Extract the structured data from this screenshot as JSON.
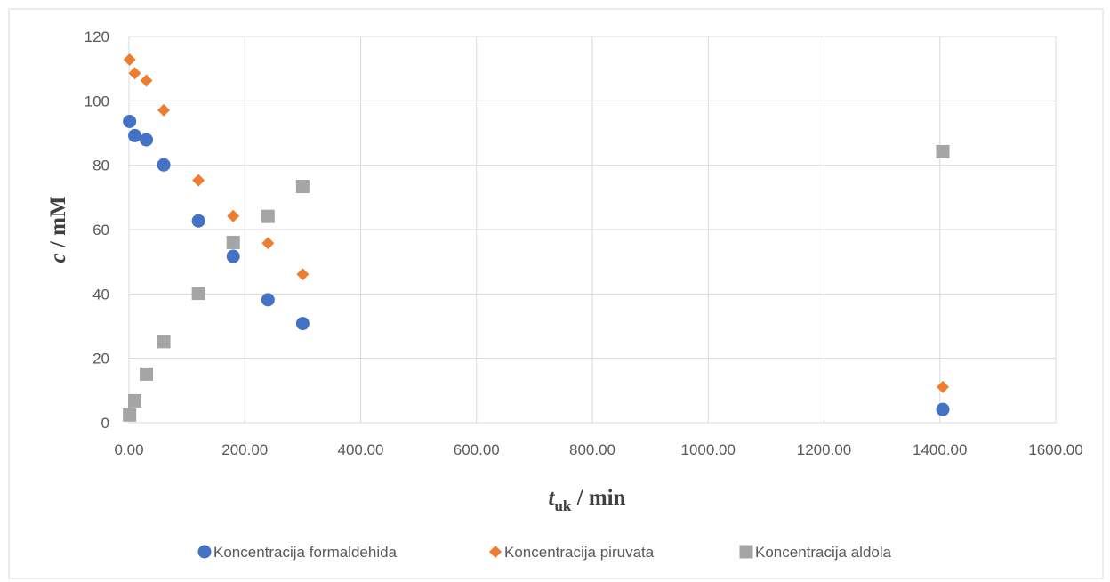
{
  "chart_data": {
    "type": "scatter",
    "xlabel": {
      "main": "t",
      "sub": "uk",
      "rest": " / min"
    },
    "ylabel": {
      "main": "c",
      "rest": " / mM"
    },
    "xlim": [
      0,
      1600
    ],
    "ylim": [
      0,
      120
    ],
    "x_ticks": [
      0,
      200,
      400,
      600,
      800,
      1000,
      1200,
      1400,
      1600
    ],
    "x_tick_labels": [
      "0.00",
      "200.00",
      "400.00",
      "600.00",
      "800.00",
      "1000.00",
      "1200.00",
      "1400.00",
      "1600.00"
    ],
    "y_ticks": [
      0,
      20,
      40,
      60,
      80,
      100,
      120
    ],
    "y_tick_labels": [
      "0",
      "20",
      "40",
      "60",
      "80",
      "100",
      "120"
    ],
    "grid": true,
    "legend_position": "bottom",
    "series": [
      {
        "name": "Koncentracija formaldehida",
        "marker": "circle",
        "color": "#4472c4",
        "points": [
          [
            1,
            93.6
          ],
          [
            10,
            89.2
          ],
          [
            30,
            87.9
          ],
          [
            60,
            80.1
          ],
          [
            120,
            62.7
          ],
          [
            180,
            51.7
          ],
          [
            240,
            38.2
          ],
          [
            300,
            30.8
          ],
          [
            1405,
            4.1
          ]
        ]
      },
      {
        "name": "Koncentracija piruvata",
        "marker": "diamond",
        "color": "#ed7d31",
        "points": [
          [
            1,
            112.8
          ],
          [
            10,
            108.6
          ],
          [
            30,
            106.3
          ],
          [
            60,
            97.1
          ],
          [
            120,
            75.3
          ],
          [
            180,
            64.2
          ],
          [
            240,
            55.8
          ],
          [
            300,
            46.1
          ],
          [
            1405,
            11.1
          ]
        ]
      },
      {
        "name": "Koncentracija aldola",
        "marker": "square",
        "color": "#a5a5a5",
        "points": [
          [
            1,
            2.4
          ],
          [
            10,
            6.8
          ],
          [
            30,
            15.1
          ],
          [
            60,
            25.2
          ],
          [
            120,
            40.2
          ],
          [
            180,
            56.0
          ],
          [
            240,
            64.1
          ],
          [
            300,
            73.4
          ],
          [
            1405,
            84.2
          ]
        ]
      }
    ]
  }
}
